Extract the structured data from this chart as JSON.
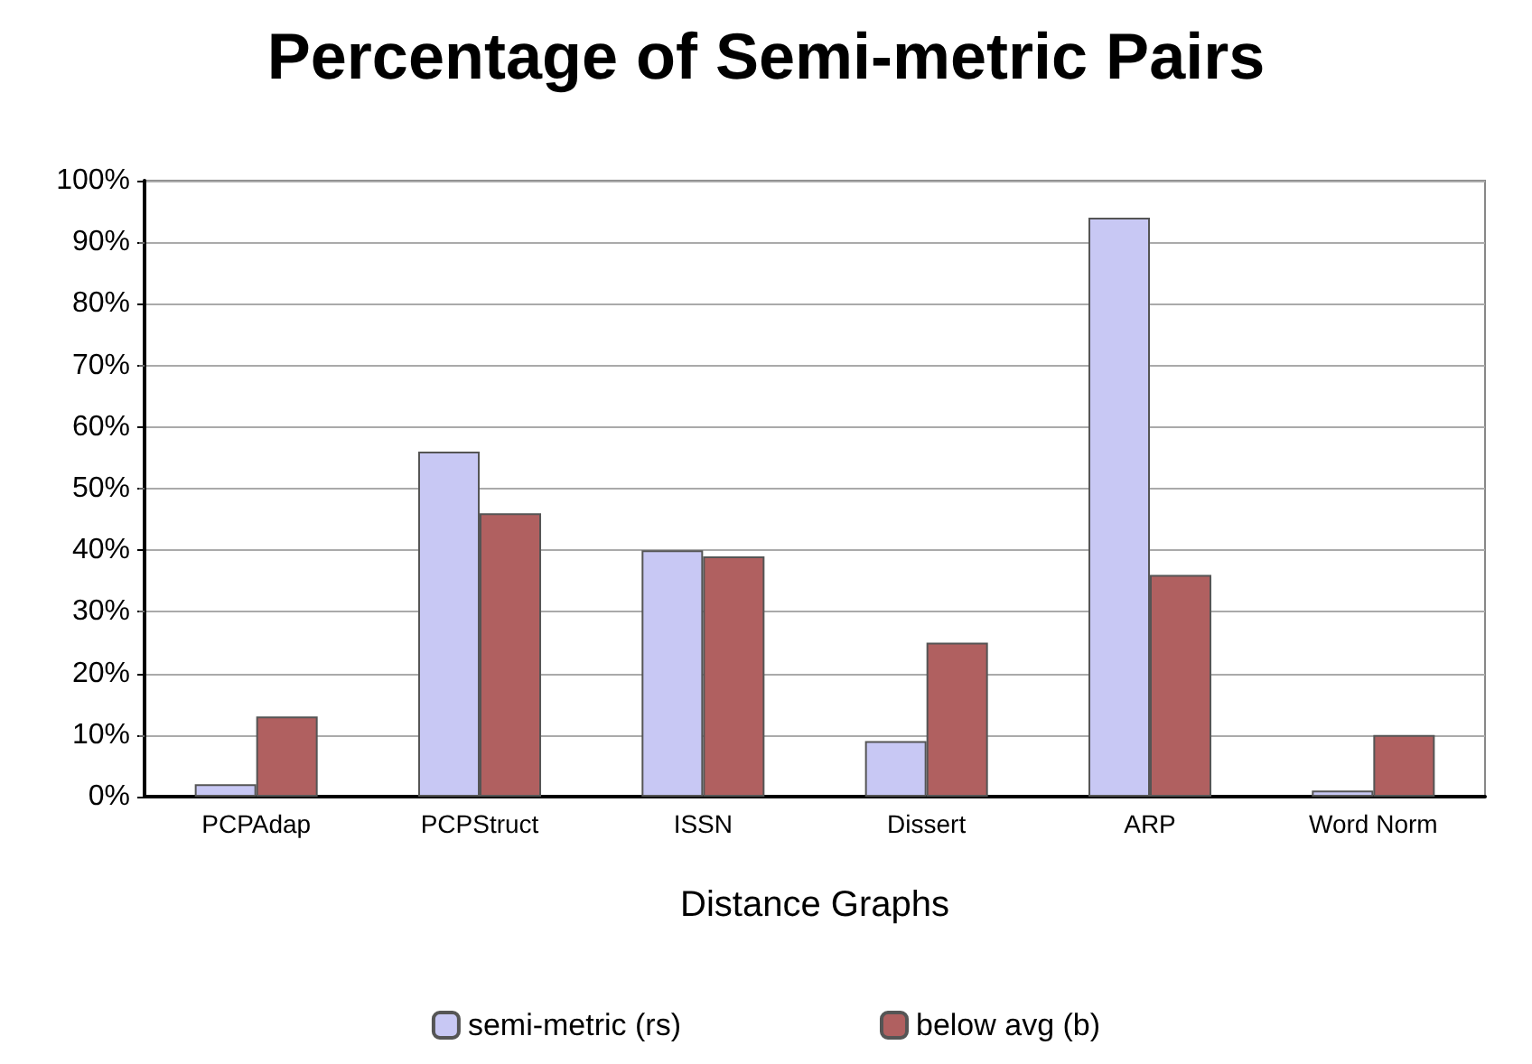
{
  "chart_data": {
    "type": "bar",
    "title": "Percentage of Semi-metric Pairs",
    "xlabel": "Distance Graphs",
    "categories": [
      "PCPAdap",
      "PCPStruct",
      "ISSN",
      "Dissert",
      "ARP",
      "Word Norm"
    ],
    "series": [
      {
        "name": "semi-metric (rs)",
        "color": "#c8c8f4",
        "values": [
          2,
          56,
          40,
          9,
          94,
          1
        ]
      },
      {
        "name": "below avg (b)",
        "color": "#b06060",
        "values": [
          13,
          46,
          39,
          25,
          36,
          10
        ]
      }
    ],
    "ylim": [
      0,
      100
    ],
    "yticks": [
      {
        "value": 0,
        "label": "0%"
      },
      {
        "value": 10,
        "label": "10%"
      },
      {
        "value": 20,
        "label": "20%"
      },
      {
        "value": 30,
        "label": "30%"
      },
      {
        "value": 40,
        "label": "40%"
      },
      {
        "value": 50,
        "label": "50%"
      },
      {
        "value": 60,
        "label": "60%"
      },
      {
        "value": 70,
        "label": "70%"
      },
      {
        "value": 80,
        "label": "80%"
      },
      {
        "value": 90,
        "label": "90%"
      },
      {
        "value": 100,
        "label": "100%"
      }
    ],
    "grid": "y",
    "legend": "bottom"
  }
}
